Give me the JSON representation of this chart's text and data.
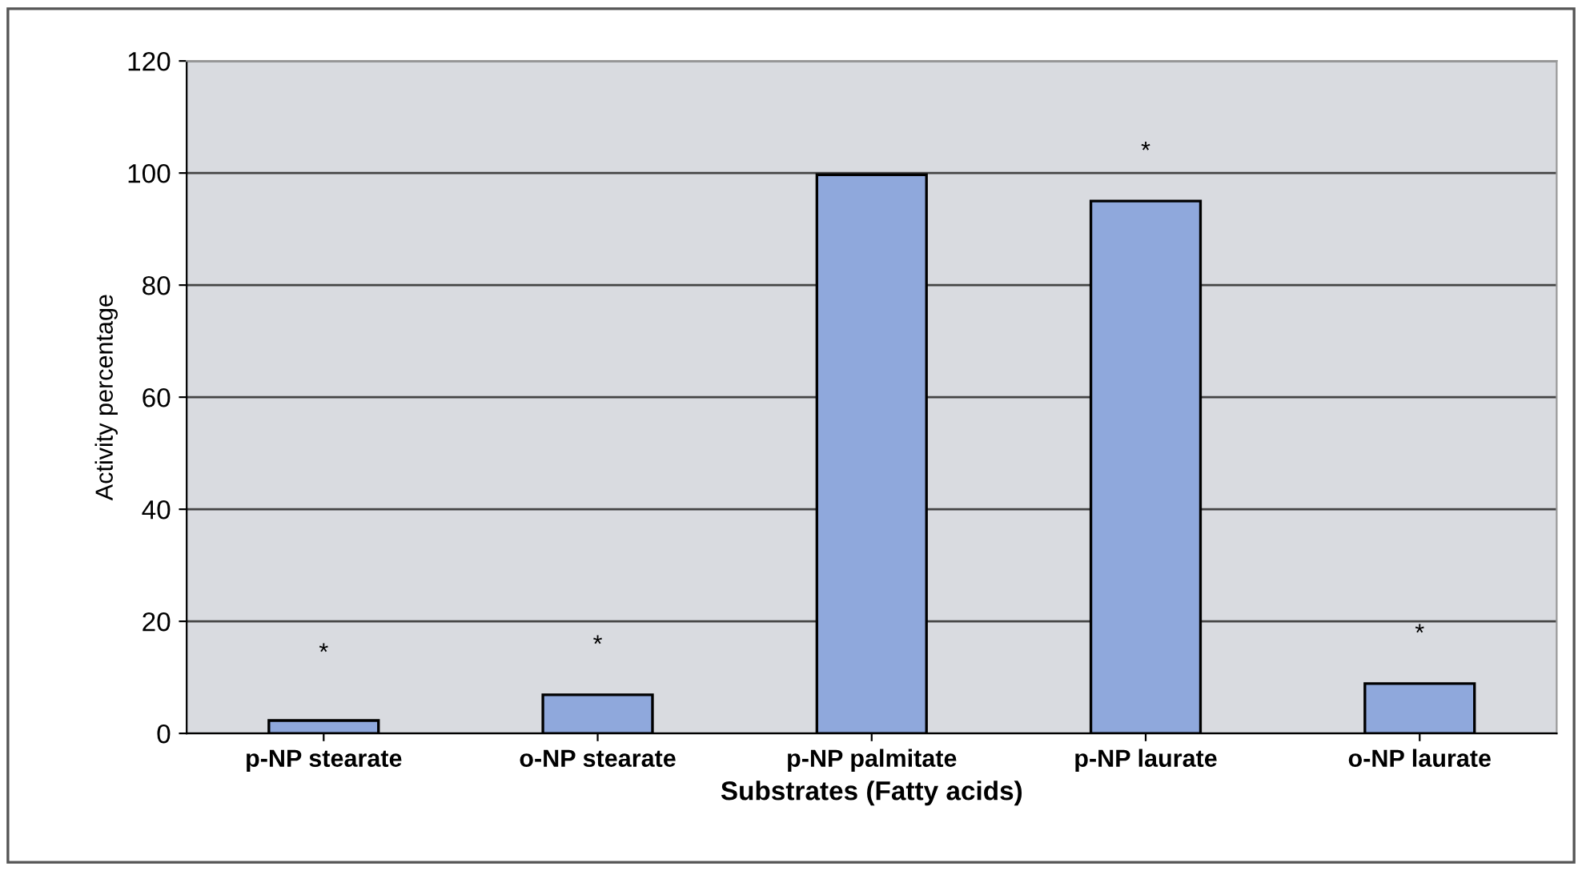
{
  "chart_data": {
    "type": "bar",
    "xlabel": "Substrates (Fatty acids)",
    "ylabel": "Activity percentage",
    "categories": [
      "p-NP stearate",
      "o-NP stearate",
      "p-NP palmitate",
      "p-NP laurate",
      "o-NP laurate"
    ],
    "values": [
      2.3,
      6.9,
      99.7,
      95,
      8.9
    ],
    "color": "#8fa8dc",
    "ylim": [
      0,
      120
    ],
    "yticks": [
      0,
      20,
      40,
      60,
      80,
      100,
      120
    ],
    "grid": "y",
    "annotations": [
      "*",
      "*",
      "*",
      "*"
    ]
  }
}
